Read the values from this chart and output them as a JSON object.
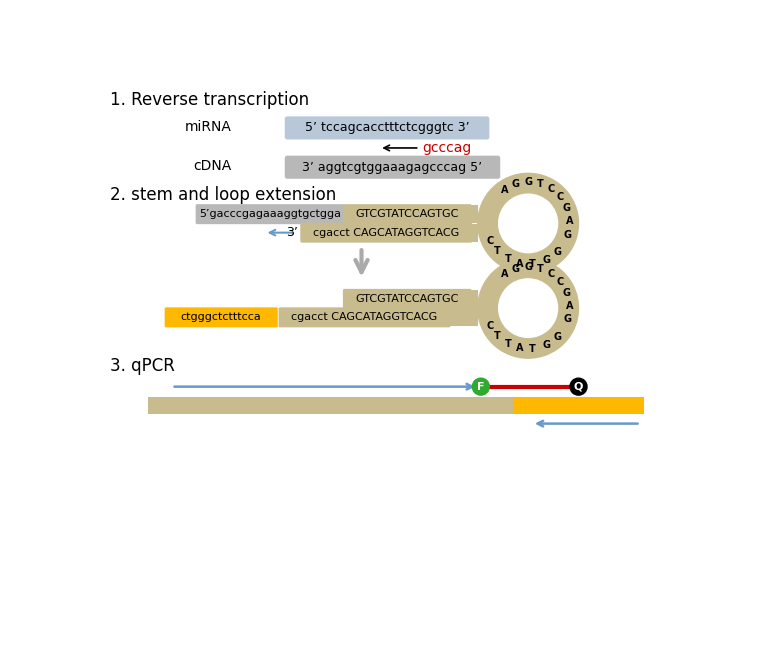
{
  "bg_color": "#ffffff",
  "tan_color": "#C8BC8E",
  "blue_box_color": "#B8C8D8",
  "gray_box_color": "#B8B8B8",
  "yellow_color": "#FFB800",
  "green_color": "#2EAA2E",
  "red_color": "#CC0000",
  "arrow_blue": "#6699CC",
  "section1_title": "1. Reverse transcription",
  "mirna_label": "miRNA",
  "mirna_seq": "5’ tccagcacctttctcgggtc 3’",
  "primer_seq": "gcccag",
  "cdna_label": "cDNA",
  "cdna_seq": "3’ aggtcgtggaaagagcccag 5’",
  "section2_title": "2. stem and loop extension",
  "top_seq_gray": "5’gacccgagaaaggtgctgga",
  "top_seq_tan": "GTCGTATCCAGTGC",
  "bot_seq_label": "3’",
  "bot_seq_tan": "cgacct CAGCATAGGTCACG",
  "section3_title": "3. qPCR",
  "bottom_seq_yellow": "ctgggctctttcca",
  "bottom_seq2": "cgacct CAGCATAGGTCACG",
  "top_seq2_tan": "GTCGTATCCAGTGC",
  "loop_letters": [
    [
      125,
      "A"
    ],
    [
      108,
      "G"
    ],
    [
      90,
      "G"
    ],
    [
      73,
      "T"
    ],
    [
      57,
      "C"
    ],
    [
      40,
      "C"
    ],
    [
      22,
      "G"
    ],
    [
      3,
      "A"
    ],
    [
      344,
      "G"
    ],
    [
      316,
      "G"
    ],
    [
      296,
      "G"
    ],
    [
      276,
      "T"
    ],
    [
      258,
      "A"
    ],
    [
      241,
      "T"
    ],
    [
      222,
      "T"
    ],
    [
      205,
      "C"
    ]
  ]
}
